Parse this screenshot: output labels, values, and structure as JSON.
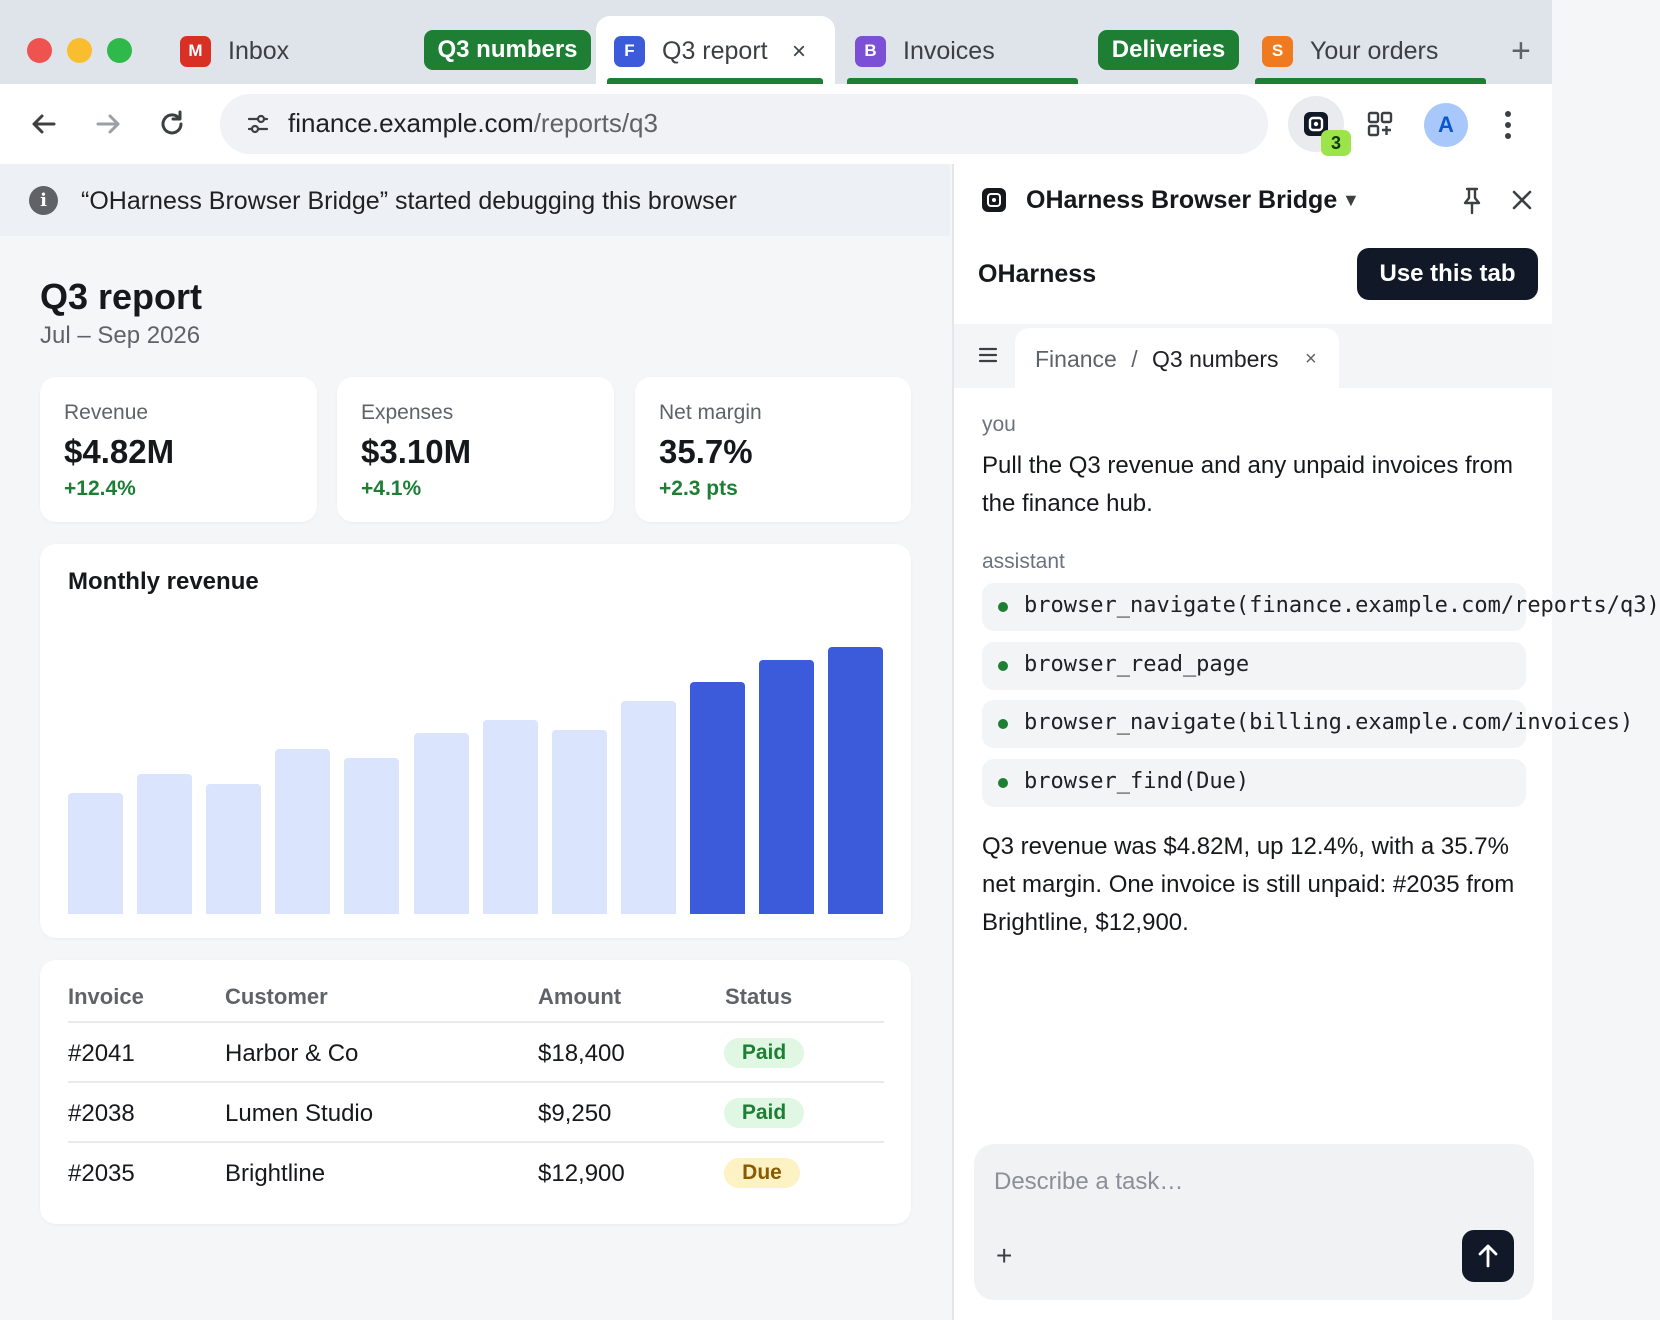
{
  "colors": {
    "accent_dark": "#111827",
    "group_green": "#1e7e34",
    "bar_light": "#dbe4fd",
    "bar_dark": "#3b5bdb",
    "badge_green": "#9de34a"
  },
  "tabs": [
    {
      "favicon_letter": "M",
      "favicon_color": "#d93025",
      "label": "Inbox"
    },
    {
      "group_label": "Q3 numbers"
    },
    {
      "favicon_letter": "F",
      "favicon_color": "#3b5bdb",
      "label": "Q3 report",
      "active": true,
      "close_glyph": "×"
    },
    {
      "favicon_letter": "B",
      "favicon_color": "#7b4fd6",
      "label": "Invoices"
    },
    {
      "group_label": "Deliveries"
    },
    {
      "favicon_letter": "S",
      "favicon_color": "#f07a1f",
      "label": "Your orders"
    }
  ],
  "newtab_glyph": "+",
  "toolbar": {
    "url_host": "finance.example.com",
    "url_path": "/reports/q3",
    "extension_badge": "3",
    "avatar_letter": "A"
  },
  "debug_bar": {
    "text": "“OHarness Browser Bridge” started debugging this browser"
  },
  "page": {
    "title": "Q3 report",
    "subtitle": "Jul – Sep 2026",
    "stats": [
      {
        "label": "Revenue",
        "value": "$4.82M",
        "delta": "+12.4%"
      },
      {
        "label": "Expenses",
        "value": "$3.10M",
        "delta": "+4.1%"
      },
      {
        "label": "Net margin",
        "value": "35.7%",
        "delta": "+2.3 pts"
      }
    ],
    "table": {
      "headers": [
        "Invoice",
        "Customer",
        "Amount",
        "Status"
      ],
      "rows": [
        {
          "invoice": "#2041",
          "customer": "Harbor & Co",
          "amount": "$18,400",
          "status": "Paid"
        },
        {
          "invoice": "#2038",
          "customer": "Lumen Studio",
          "amount": "$9,250",
          "status": "Paid"
        },
        {
          "invoice": "#2035",
          "customer": "Brightline",
          "amount": "$12,900",
          "status": "Due"
        }
      ]
    }
  },
  "chart_data": {
    "type": "bar",
    "title": "Monthly revenue",
    "values": [
      1.52,
      1.76,
      1.64,
      2.08,
      1.96,
      2.28,
      2.44,
      2.32,
      2.68,
      2.92,
      3.2,
      3.36
    ],
    "highlighted": [
      false,
      false,
      false,
      false,
      false,
      false,
      false,
      false,
      false,
      true,
      true,
      true
    ],
    "ylim": [
      0,
      3.4
    ],
    "grid": false,
    "axes_visible": false
  },
  "panel": {
    "title": "OHarness Browser Bridge",
    "caret": "▼",
    "brand": "OHarness",
    "use_tab_label": "Use this tab",
    "thread_section": "Finance",
    "thread_separator": "/",
    "thread_name": "Q3 numbers",
    "thread_close": "×",
    "messages": {
      "user_role": "you",
      "user_text": "Pull the Q3 revenue and any unpaid invoices from the finance hub.",
      "assistant_role": "assistant",
      "tool_calls": [
        "browser_navigate(finance.example.com/reports/q3)",
        "browser_read_page",
        "browser_navigate(billing.example.com/invoices)",
        "browser_find(Due)"
      ],
      "assistant_text": "Q3 revenue was $4.82M, up 12.4%, with a 35.7% net margin. One invoice is still unpaid: #2035 from Brightline, $12,900."
    },
    "composer": {
      "placeholder": "Describe a task…",
      "plus_glyph": "+"
    }
  }
}
